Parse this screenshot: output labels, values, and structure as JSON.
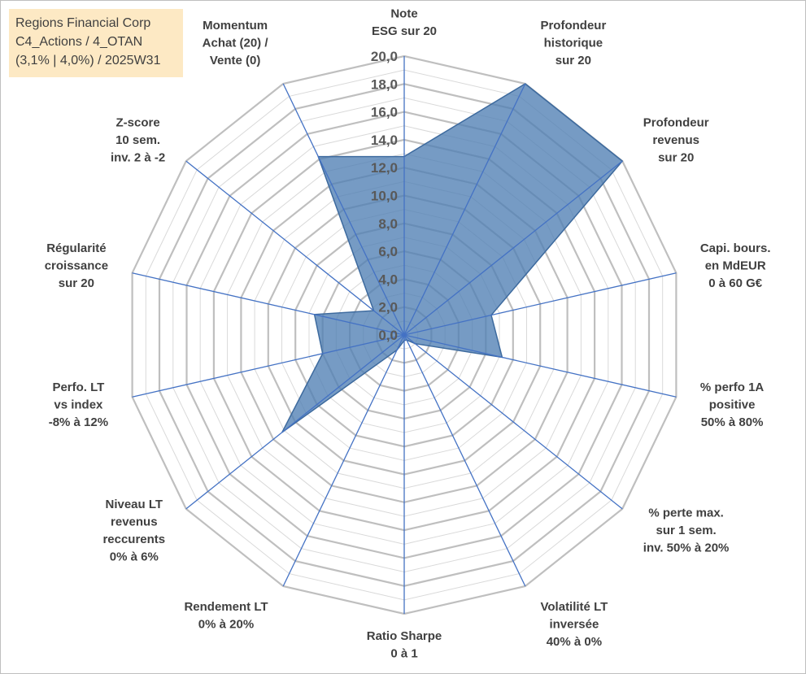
{
  "title": {
    "line1": "Regions Financial Corp",
    "line2": "C4_Actions / 4_OTAN",
    "line3": "(3,1% | 4,0%) / 2025W31"
  },
  "chart_data": {
    "type": "radar",
    "rmin": 0,
    "rmax": 20,
    "ticks": [
      "0,0",
      "2,0",
      "4,0",
      "6,0",
      "8,0",
      "10,0",
      "12,0",
      "14,0",
      "16,0",
      "18,0",
      "20,0"
    ],
    "grid": true,
    "colors": {
      "fill": "#4f7fb3",
      "fill_opacity": "0.78",
      "spoke": "#4472c4",
      "grid": "#bfbfbf",
      "grid_minor": "#d9d9d9"
    },
    "axes": [
      {
        "label": [
          "Note",
          "ESG sur 20"
        ],
        "value": 12.8
      },
      {
        "label": [
          "Profondeur",
          "historique",
          "sur 20"
        ],
        "value": 20
      },
      {
        "label": [
          "Profondeur",
          "revenus",
          "sur 20"
        ],
        "value": 20
      },
      {
        "label": [
          "Capi. bours.",
          "en MdEUR",
          "0 à 60 G€"
        ],
        "value": 6.4
      },
      {
        "label": [
          "% perfo 1A",
          "positive",
          "50% à 80%"
        ],
        "value": 7.2
      },
      {
        "label": [
          "% perte max.",
          "sur 1 sem.",
          "inv. 50% à 20%"
        ],
        "value": 1.0
      },
      {
        "label": [
          "Volatilité LT",
          "inversée",
          "40% à 0%"
        ],
        "value": 0.4
      },
      {
        "label": [
          "Ratio Sharpe",
          "0 à 1"
        ],
        "value": 0.4
      },
      {
        "label": [
          "Rendement LT",
          "0% à 20%"
        ],
        "value": 1.2
      },
      {
        "label": [
          "Niveau LT",
          "revenus",
          "reccurents",
          "0% à 6%"
        ],
        "value": 11.2
      },
      {
        "label": [
          "Perfo. LT",
          "vs index",
          "-8% à 12%"
        ],
        "value": 6.0
      },
      {
        "label": [
          "Régularité",
          "croissance",
          "sur 20"
        ],
        "value": 6.6
      },
      {
        "label": [
          "Z-score",
          "10 sem.",
          "inv. 2 à -2"
        ],
        "value": 2.8
      },
      {
        "label": [
          "Momentum",
          "Achat (20) /",
          "Vente (0)"
        ],
        "value": 14.2
      }
    ]
  }
}
